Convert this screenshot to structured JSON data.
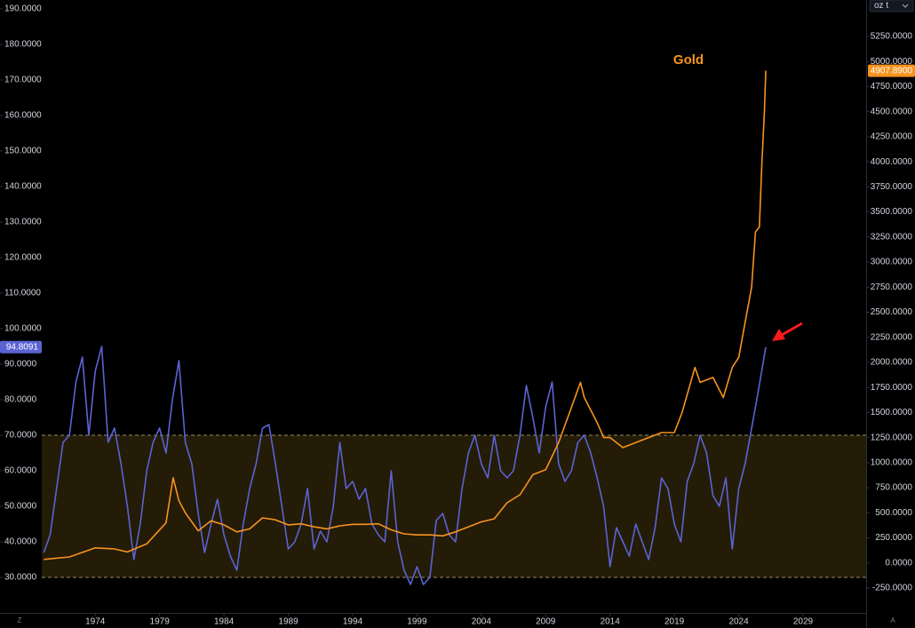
{
  "chart_data": {
    "type": "line",
    "xlim": [
      1966.6,
      2033.9
    ],
    "xticks": [
      1974,
      1979,
      1984,
      1989,
      1994,
      1999,
      2004,
      2009,
      2014,
      2019,
      2024,
      2029
    ],
    "ylim": [
      20,
      192.5
    ],
    "yticks": [
      {
        "value": 30,
        "label": "30.0000"
      },
      {
        "value": 40,
        "label": "40.0000"
      },
      {
        "value": 50,
        "label": "50.0000"
      },
      {
        "value": 60,
        "label": "60.0000"
      },
      {
        "value": 70,
        "label": "70.0000"
      },
      {
        "value": 80,
        "label": "80.0000"
      },
      {
        "value": 90,
        "label": "90.0000"
      },
      {
        "value": 100,
        "label": "100.0000"
      },
      {
        "value": 110,
        "label": "110.0000"
      },
      {
        "value": 120,
        "label": "120.0000"
      },
      {
        "value": 130,
        "label": "130.0000"
      },
      {
        "value": 140,
        "label": "140.0000"
      },
      {
        "value": 150,
        "label": "150.0000"
      },
      {
        "value": 160,
        "label": "160.0000"
      },
      {
        "value": 170,
        "label": "170.0000"
      },
      {
        "value": 180,
        "label": "180.0000"
      },
      {
        "value": 190,
        "label": "190.0000"
      }
    ],
    "y2lim": [
      -498,
      5613
    ],
    "y2ticks": [
      {
        "value": -250,
        "label": "-250.0000"
      },
      {
        "value": 0,
        "label": "0.0000"
      },
      {
        "value": 250,
        "label": "250.0000"
      },
      {
        "value": 500,
        "label": "500.0000"
      },
      {
        "value": 750,
        "label": "750.0000"
      },
      {
        "value": 1000,
        "label": "1000.0000"
      },
      {
        "value": 1250,
        "label": "1250.0000"
      },
      {
        "value": 1500,
        "label": "1500.0000"
      },
      {
        "value": 1750,
        "label": "1750.0000"
      },
      {
        "value": 2000,
        "label": "2000.0000"
      },
      {
        "value": 2250,
        "label": "2250.0000"
      },
      {
        "value": 2500,
        "label": "2500.0000"
      },
      {
        "value": 2750,
        "label": "2750.0000"
      },
      {
        "value": 3000,
        "label": "3000.0000"
      },
      {
        "value": 3250,
        "label": "3250.0000"
      },
      {
        "value": 3500,
        "label": "3500.0000"
      },
      {
        "value": 3750,
        "label": "3750.0000"
      },
      {
        "value": 4000,
        "label": "4000.0000"
      },
      {
        "value": 4250,
        "label": "4250.0000"
      },
      {
        "value": 4500,
        "label": "4500.0000"
      },
      {
        "value": 4750,
        "label": "4750.0000"
      },
      {
        "value": 5000,
        "label": "5000.0000"
      },
      {
        "value": 5250,
        "label": "5250.0000"
      }
    ],
    "y2_unit": "oz t",
    "grid": false,
    "band": [
      30,
      70
    ],
    "band_color": "#2a2108",
    "series": [
      {
        "color": "#5b63d3",
        "x": [
          1970,
          1970.5,
          1971,
          1971.5,
          1972,
          1972.5,
          1973,
          1973.5,
          1974,
          1974.5,
          1975,
          1975.5,
          1976,
          1976.5,
          1977,
          1977.5,
          1978,
          1978.5,
          1979,
          1979.5,
          1980,
          1980.5,
          1981,
          1981.5,
          1982,
          1982.5,
          1983,
          1983.5,
          1984,
          1984.5,
          1985,
          1985.5,
          1986,
          1986.5,
          1987,
          1987.5,
          1988,
          1988.5,
          1989,
          1989.5,
          1990,
          1990.5,
          1991,
          1991.5,
          1992,
          1992.5,
          1993,
          1993.5,
          1994,
          1994.5,
          1995,
          1995.5,
          1996,
          1996.5,
          1997,
          1997.5,
          1998,
          1998.5,
          1999,
          1999.5,
          2000,
          2000.5,
          2001,
          2001.5,
          2002,
          2002.5,
          2003,
          2003.5,
          2004,
          2004.5,
          2005,
          2005.5,
          2006,
          2006.5,
          2007,
          2007.5,
          2008,
          2008.5,
          2009,
          2009.5,
          2010,
          2010.5,
          2011,
          2011.5,
          2012,
          2012.5,
          2013,
          2013.5,
          2014,
          2014.5,
          2015,
          2015.5,
          2016,
          2016.5,
          2017,
          2017.5,
          2018,
          2018.5,
          2019,
          2019.5,
          2020,
          2020.5,
          2021,
          2021.5,
          2022,
          2022.5,
          2023,
          2023.5,
          2024,
          2024.5,
          2025,
          2025.5,
          2026.1
        ],
        "values": [
          37,
          42,
          55,
          68,
          70,
          85,
          92,
          70,
          88,
          95,
          68,
          72,
          62,
          50,
          35,
          45,
          60,
          68,
          72,
          65,
          80,
          91,
          68,
          62,
          48,
          37,
          45,
          52,
          42,
          36,
          32,
          45,
          55,
          62,
          72,
          73,
          62,
          50,
          38,
          40,
          45,
          55,
          38,
          43,
          40,
          50,
          68,
          55,
          57,
          52,
          55,
          45,
          42,
          40,
          60,
          40,
          32,
          28,
          33,
          28,
          30,
          46,
          48,
          42,
          40,
          55,
          65,
          70,
          62,
          58,
          70,
          60,
          58,
          60,
          70,
          84,
          75,
          65,
          78,
          85,
          62,
          57,
          60,
          68,
          70,
          65,
          58,
          50,
          33,
          44,
          40,
          36,
          45,
          40,
          35,
          44,
          58,
          55,
          45,
          40,
          57,
          62,
          70,
          65,
          53,
          50,
          58,
          38,
          55,
          62,
          72,
          82,
          94.8091
        ],
        "price_tag": 94.8091
      },
      {
        "name": "Gold",
        "color": "#f7931e",
        "axis": "y2",
        "x": [
          1970,
          1972,
          1974,
          1975.5,
          1976.5,
          1978,
          1979.5,
          1980.05,
          1980.5,
          1981,
          1982,
          1983,
          1984,
          1985,
          1986,
          1987,
          1988,
          1989,
          1990,
          1991,
          1992,
          1993,
          1994,
          1995,
          1996,
          1997,
          1998,
          1999,
          2000,
          2001,
          2002,
          2003,
          2004,
          2005,
          2006,
          2007,
          2008,
          2009,
          2010,
          2011,
          2011.7,
          2012,
          2013,
          2013.5,
          2014,
          2015,
          2016,
          2017,
          2018,
          2019,
          2019.6,
          2020.6,
          2021,
          2022,
          2022.8,
          2023.5,
          2024,
          2024.5,
          2025,
          2025.3,
          2025.6,
          2025.8,
          2026,
          2026.1
        ],
        "values": [
          35,
          60,
          150,
          140,
          110,
          190,
          400,
          850,
          620,
          500,
          320,
          420,
          380,
          310,
          340,
          450,
          430,
          380,
          390,
          360,
          340,
          370,
          385,
          385,
          390,
          330,
          290,
          280,
          280,
          270,
          310,
          360,
          410,
          440,
          600,
          680,
          880,
          930,
          1200,
          1550,
          1800,
          1650,
          1400,
          1250,
          1250,
          1150,
          1200,
          1250,
          1300,
          1300,
          1500,
          1950,
          1800,
          1850,
          1650,
          1950,
          2050,
          2400,
          2750,
          3300,
          3350,
          4000,
          4500,
          4907.89
        ],
        "price_tag": {
          "value": 4907.89,
          "label": "4907.8900"
        }
      }
    ]
  },
  "controls": [
    "Z",
    "A"
  ]
}
